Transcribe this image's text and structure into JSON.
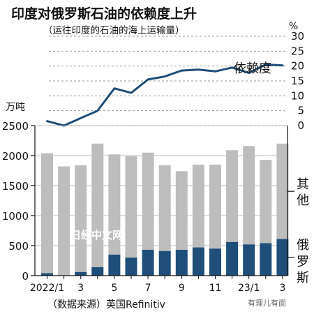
{
  "page": {
    "title": "印度对俄罗斯石油的依赖度上升",
    "subtitle": "（运往印度的石油的海上运输量）",
    "source": "（数据来源）英国Refinitiv",
    "watermark": "日经中文网",
    "corner_mark": "有理儿有面"
  },
  "chart_data": [
    {
      "type": "line",
      "name": "dependency",
      "series": [
        {
          "name": "依赖度",
          "values": [
            1.5,
            0,
            2.5,
            5,
            12.5,
            11,
            15.5,
            16.5,
            18.5,
            18.8,
            18.2,
            19.5,
            17.7,
            20.5,
            20.2
          ]
        }
      ],
      "y_unit": "%",
      "ylim": [
        0,
        30
      ],
      "yticks": [
        "0",
        "5",
        "10",
        "15",
        "20",
        "25",
        "30"
      ],
      "series_label": "依赖度",
      "grid": "dashed horizontal"
    },
    {
      "type": "bar",
      "name": "volume",
      "y_unit": "万吨",
      "ylim": [
        0,
        2500
      ],
      "yticks": [
        "0",
        "500",
        "1000",
        "1500",
        "2000",
        "2500"
      ],
      "categories": [
        "2022/1",
        "2",
        "3",
        "4",
        "5",
        "6",
        "7",
        "8",
        "9",
        "10",
        "11",
        "12",
        "23/1",
        "2",
        "3"
      ],
      "xtick_labels": [
        "2022/1",
        "",
        "3",
        "",
        "5",
        "",
        "7",
        "",
        "9",
        "",
        "11",
        "",
        "23/1",
        "",
        "3"
      ],
      "series": [
        {
          "name": "俄罗斯",
          "color": "#1f4e79",
          "values": [
            40,
            0,
            60,
            140,
            350,
            300,
            430,
            410,
            430,
            470,
            450,
            560,
            520,
            540,
            610
          ]
        },
        {
          "name": "其他",
          "color": "#bdbdbd",
          "values": [
            2000,
            1820,
            1780,
            2060,
            1670,
            1690,
            1620,
            1430,
            1310,
            1380,
            1400,
            1530,
            1640,
            1390,
            1590
          ]
        }
      ],
      "legend": [
        "其",
        "他",
        "俄",
        "罗",
        "斯"
      ]
    }
  ]
}
